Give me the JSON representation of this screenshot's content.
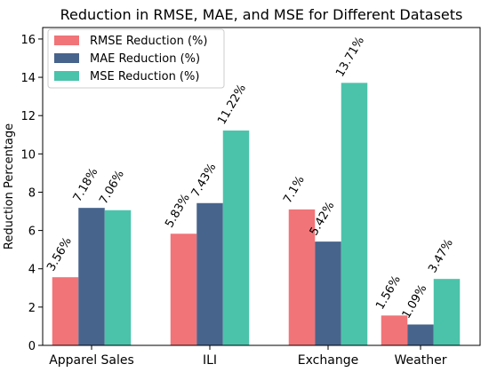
{
  "chart_data": {
    "type": "bar",
    "title": "Reduction in RMSE, MAE, and MSE for Different Datasets",
    "xlabel": "",
    "ylabel": "Reduction Percentage",
    "categories": [
      "Apparel Sales",
      "ILI",
      "Exchange",
      "Weather"
    ],
    "ylim": [
      0,
      16.6
    ],
    "yticks": [
      0,
      2,
      4,
      6,
      8,
      10,
      12,
      14,
      16
    ],
    "grid": false,
    "legend_position": "top-left",
    "series": [
      {
        "name": "RMSE Reduction (%)",
        "color": "#f07478",
        "values": [
          3.56,
          5.83,
          7.1,
          1.56
        ],
        "labels": [
          "3.56%",
          "5.83%",
          "7.1%",
          "1.56%"
        ]
      },
      {
        "name": "MAE Reduction (%)",
        "color": "#47648c",
        "values": [
          7.18,
          7.43,
          5.42,
          1.09
        ],
        "labels": [
          "7.18%",
          "7.43%",
          "5.42%",
          "1.09%"
        ]
      },
      {
        "name": "MSE Reduction (%)",
        "color": "#4bc3ab",
        "values": [
          7.06,
          11.22,
          13.71,
          3.47
        ],
        "labels": [
          "7.06%",
          "11.22%",
          "13.71%",
          "3.47%"
        ]
      }
    ]
  }
}
